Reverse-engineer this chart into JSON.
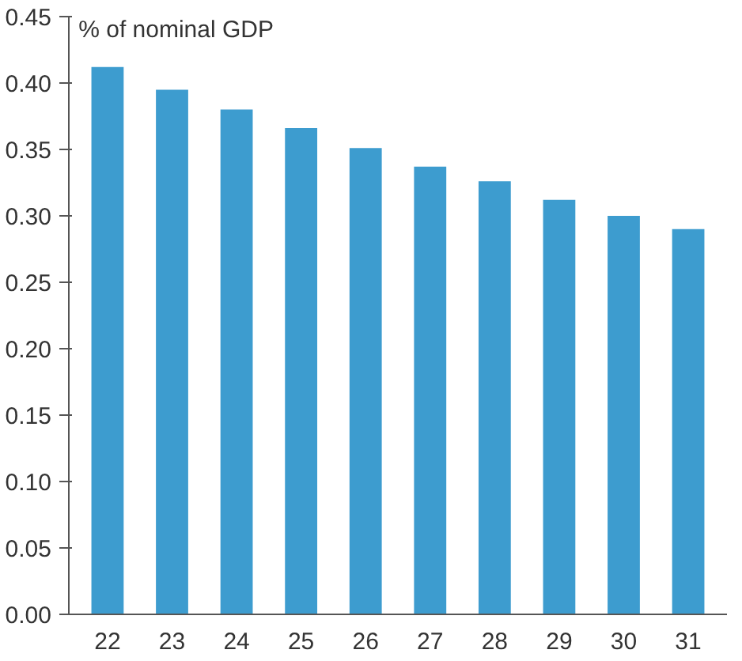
{
  "chart_data": {
    "type": "bar",
    "ylabel": "% of nominal GDP",
    "categories": [
      "22",
      "23",
      "24",
      "25",
      "26",
      "27",
      "28",
      "29",
      "30",
      "31"
    ],
    "values": [
      0.412,
      0.395,
      0.38,
      0.366,
      0.351,
      0.337,
      0.326,
      0.312,
      0.3,
      0.29
    ],
    "color": "#3d9ccf",
    "ylim": [
      0,
      0.45
    ],
    "yticks": [
      {
        "value": 0,
        "label": "0.00"
      },
      {
        "value": 0.05,
        "label": "0.05"
      },
      {
        "value": 0.1,
        "label": "0.10"
      },
      {
        "value": 0.15,
        "label": "0.15"
      },
      {
        "value": 0.2,
        "label": "0.20"
      },
      {
        "value": 0.25,
        "label": "0.25"
      },
      {
        "value": 0.3,
        "label": "0.30"
      },
      {
        "value": 0.35,
        "label": "0.35"
      },
      {
        "value": 0.4,
        "label": "0.40"
      },
      {
        "value": 0.45,
        "label": "0.45"
      }
    ],
    "grid": false
  }
}
